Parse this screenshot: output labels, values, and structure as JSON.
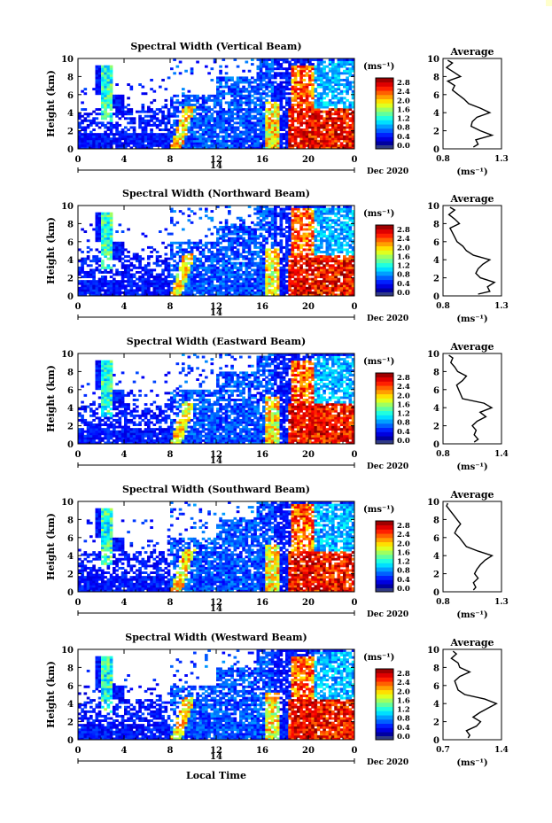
{
  "figure": {
    "x_axis_title": "Local Time",
    "date_label": "Dec 2020",
    "day_label": "14",
    "colorbar_unit": "(ms⁻¹)",
    "profile_title": "Average",
    "profile_unit": "(ms⁻¹)",
    "y_axis_title": "Height (km)"
  },
  "chart_data": [
    {
      "type": "heatmap",
      "title": "Spectral Width (Vertical Beam)",
      "xlabel": "Local Time",
      "ylabel": "Height (km)",
      "x_ticks": [
        "0",
        "4",
        "8",
        "12",
        "16",
        "20",
        "0"
      ],
      "xlim": [
        0,
        24
      ],
      "y_ticks": [
        "0",
        "2",
        "4",
        "6",
        "8",
        "10"
      ],
      "ylim": [
        0,
        10
      ],
      "colorbar": {
        "label": "(ms⁻¹)",
        "ticks": [
          "0.0",
          "0.4",
          "0.8",
          "1.2",
          "1.6",
          "2.0",
          "2.4",
          "2.8"
        ],
        "range": [
          0,
          3.0
        ]
      },
      "profile": {
        "title": "Average",
        "xlabel": "(ms⁻¹)",
        "xlim": [
          0.8,
          1.3
        ],
        "x_ticks": [
          "0.8",
          "1.3"
        ],
        "heights": [
          0.2,
          0.5,
          1.0,
          1.5,
          2.0,
          2.5,
          3.0,
          3.5,
          4.0,
          4.5,
          5.0,
          5.5,
          6.0,
          6.5,
          7.0,
          7.5,
          8.0,
          8.5,
          9.0,
          9.5,
          9.8
        ],
        "values": [
          1.06,
          1.1,
          1.08,
          1.22,
          1.12,
          1.04,
          1.05,
          1.09,
          1.2,
          1.12,
          1.02,
          0.98,
          0.93,
          0.88,
          0.9,
          0.84,
          0.95,
          0.89,
          0.83,
          0.88,
          0.84
        ]
      }
    },
    {
      "type": "heatmap",
      "title": "Spectral Width (Northward Beam)",
      "xlabel": "Local Time",
      "ylabel": "Height (km)",
      "x_ticks": [
        "0",
        "4",
        "8",
        "12",
        "16",
        "20",
        "0"
      ],
      "xlim": [
        0,
        24
      ],
      "y_ticks": [
        "0",
        "2",
        "4",
        "6",
        "8",
        "10"
      ],
      "ylim": [
        0,
        10
      ],
      "colorbar": {
        "label": "(ms⁻¹)",
        "ticks": [
          "0.0",
          "0.4",
          "0.8",
          "1.2",
          "1.6",
          "2.0",
          "2.4",
          "2.8"
        ],
        "range": [
          0,
          3.0
        ]
      },
      "profile": {
        "title": "Average",
        "xlabel": "(ms⁻¹)",
        "xlim": [
          0.8,
          1.3
        ],
        "x_ticks": [
          "0.8",
          "1.3"
        ],
        "heights": [
          0.2,
          0.5,
          1.0,
          1.5,
          2.0,
          2.5,
          3.0,
          3.5,
          4.0,
          4.5,
          5.0,
          5.5,
          6.0,
          6.5,
          7.0,
          7.5,
          8.0,
          8.5,
          9.0,
          9.5,
          9.8
        ],
        "values": [
          1.1,
          1.2,
          1.18,
          1.24,
          1.12,
          1.08,
          1.1,
          1.14,
          1.2,
          1.06,
          1.0,
          0.97,
          0.92,
          0.9,
          0.88,
          0.86,
          0.94,
          0.9,
          0.85,
          0.9,
          0.86
        ]
      }
    },
    {
      "type": "heatmap",
      "title": "Spectral Width (Eastward Beam)",
      "xlabel": "Local Time",
      "ylabel": "Height (km)",
      "x_ticks": [
        "0",
        "4",
        "8",
        "12",
        "16",
        "20",
        "0"
      ],
      "xlim": [
        0,
        24
      ],
      "y_ticks": [
        "0",
        "2",
        "4",
        "6",
        "8",
        "10"
      ],
      "ylim": [
        0,
        10
      ],
      "colorbar": {
        "label": "(ms⁻¹)",
        "ticks": [
          "0.0",
          "0.4",
          "0.8",
          "1.2",
          "1.6",
          "2.0",
          "2.4",
          "2.8"
        ],
        "range": [
          0,
          3.0
        ]
      },
      "profile": {
        "title": "Average",
        "xlabel": "(ms⁻¹)",
        "xlim": [
          0.8,
          1.4
        ],
        "x_ticks": [
          "0.8",
          "1.4"
        ],
        "heights": [
          0.2,
          0.5,
          1.0,
          1.5,
          2.0,
          2.5,
          3.0,
          3.5,
          4.0,
          4.5,
          5.0,
          5.5,
          6.0,
          6.5,
          7.0,
          7.5,
          8.0,
          8.5,
          9.0,
          9.5,
          9.8
        ],
        "values": [
          1.12,
          1.16,
          1.12,
          1.14,
          1.1,
          1.15,
          1.24,
          1.18,
          1.3,
          1.22,
          1.0,
          0.98,
          0.96,
          0.94,
          1.0,
          1.04,
          0.95,
          0.92,
          0.88,
          0.9,
          0.86
        ]
      }
    },
    {
      "type": "heatmap",
      "title": "Spectral Width (Southward Beam)",
      "xlabel": "Local Time",
      "ylabel": "Height (km)",
      "x_ticks": [
        "0",
        "4",
        "8",
        "12",
        "16",
        "20",
        "0"
      ],
      "xlim": [
        0,
        24
      ],
      "y_ticks": [
        "0",
        "2",
        "4",
        "6",
        "8",
        "10"
      ],
      "ylim": [
        0,
        10
      ],
      "colorbar": {
        "label": "(ms⁻¹)",
        "ticks": [
          "0.0",
          "0.4",
          "0.8",
          "1.2",
          "1.6",
          "2.0",
          "2.4",
          "2.8"
        ],
        "range": [
          0,
          3.0
        ]
      },
      "profile": {
        "title": "Average",
        "xlabel": "(ms⁻¹)",
        "xlim": [
          0.8,
          1.3
        ],
        "x_ticks": [
          "0.8",
          "1.3"
        ],
        "heights": [
          0.2,
          0.5,
          1.0,
          1.5,
          2.0,
          2.5,
          3.0,
          3.5,
          4.0,
          4.5,
          5.0,
          5.5,
          6.0,
          6.5,
          7.0,
          7.5,
          8.0,
          8.5,
          9.0,
          9.5,
          9.8
        ],
        "values": [
          1.06,
          1.08,
          1.06,
          1.1,
          1.07,
          1.09,
          1.12,
          1.16,
          1.22,
          1.1,
          1.0,
          0.97,
          0.94,
          0.9,
          0.92,
          0.95,
          0.92,
          0.89,
          0.86,
          0.83,
          0.84
        ]
      }
    },
    {
      "type": "heatmap",
      "title": "Spectral Width (Westward Beam)",
      "xlabel": "Local Time",
      "ylabel": "Height (km)",
      "x_ticks": [
        "0",
        "4",
        "8",
        "12",
        "16",
        "20",
        "0"
      ],
      "xlim": [
        0,
        24
      ],
      "y_ticks": [
        "0",
        "2",
        "4",
        "6",
        "8",
        "10"
      ],
      "ylim": [
        0,
        10
      ],
      "colorbar": {
        "label": "(ms⁻¹)",
        "ticks": [
          "0.0",
          "0.4",
          "0.8",
          "1.2",
          "1.6",
          "2.0",
          "2.4",
          "2.8"
        ],
        "range": [
          0,
          3.0
        ]
      },
      "profile": {
        "title": "Average",
        "xlabel": "(ms⁻¹)",
        "xlim": [
          0.7,
          1.4
        ],
        "x_ticks": [
          "0.7",
          "1.4"
        ],
        "heights": [
          0.2,
          0.5,
          1.0,
          1.5,
          2.0,
          2.5,
          3.0,
          3.5,
          4.0,
          4.5,
          5.0,
          5.5,
          6.0,
          6.5,
          7.0,
          7.5,
          8.0,
          8.5,
          9.0,
          9.5,
          9.8
        ],
        "values": [
          1.0,
          1.02,
          0.98,
          1.1,
          1.15,
          1.06,
          1.14,
          1.24,
          1.34,
          1.2,
          0.96,
          0.88,
          0.86,
          0.84,
          0.9,
          1.02,
          0.9,
          0.88,
          0.8,
          0.86,
          0.82
        ]
      }
    }
  ]
}
